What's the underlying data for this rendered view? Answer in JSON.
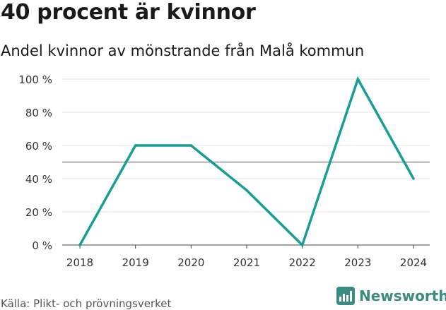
{
  "title": "40 procent är kvinnor",
  "subtitle": "Andel kvinnor av mönstrande från Malå kommun",
  "source": "Källa: Plikt- och prövningsverket",
  "brand": {
    "name": "Newsworthy",
    "icon": "newsworthy-logo-icon",
    "color": "#3a8c80"
  },
  "chart_data": {
    "type": "line",
    "title": "",
    "xlabel": "",
    "ylabel": "",
    "categories": [
      "2018",
      "2019",
      "2020",
      "2021",
      "2022",
      "2023",
      "2024"
    ],
    "series": [
      {
        "values": [
          0,
          60,
          60,
          33,
          0,
          100,
          40
        ],
        "color": "#179e95"
      }
    ],
    "reference_line": {
      "value": 50,
      "color": "#777777"
    },
    "ylim": [
      0,
      100
    ],
    "yticks": [
      0,
      20,
      40,
      60,
      80,
      100
    ],
    "ytick_labels": [
      "0 %",
      "20 %",
      "40 %",
      "60 %",
      "80 %",
      "100 %"
    ],
    "grid": true,
    "legend": "none"
  }
}
